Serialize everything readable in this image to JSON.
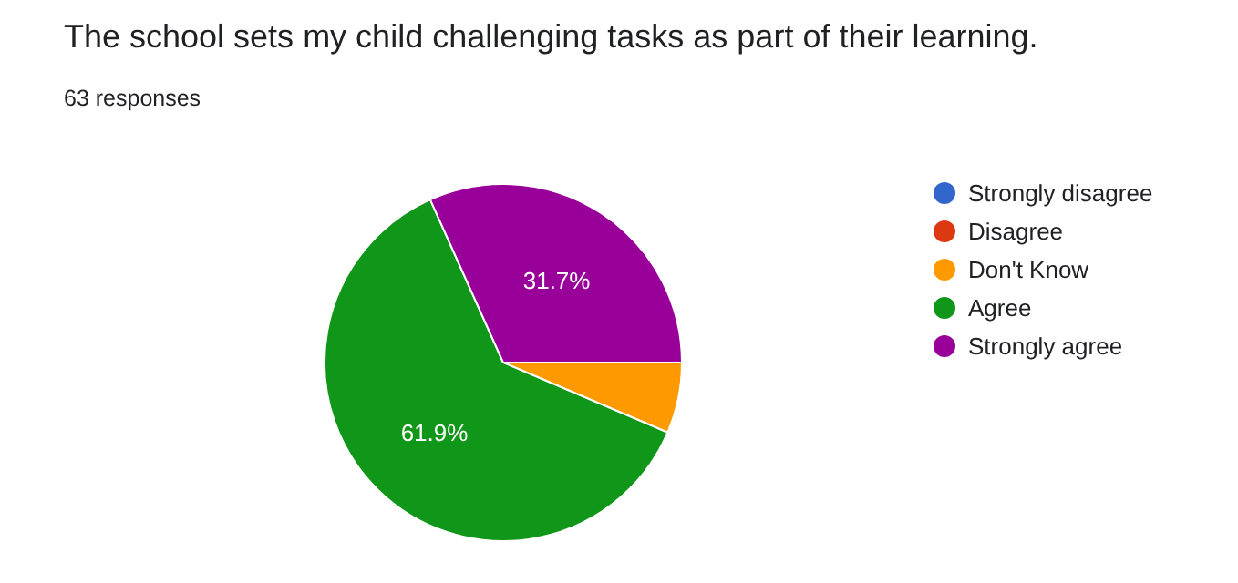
{
  "chart_data": {
    "type": "pie",
    "title": "The school sets my child challenging tasks as part of their learning.",
    "subtitle": "63 responses",
    "categories": [
      "Strongly disagree",
      "Disagree",
      "Don't Know",
      "Agree",
      "Strongly agree"
    ],
    "values": [
      0,
      0,
      6.4,
      61.9,
      31.7
    ],
    "colors": [
      "#3366cc",
      "#dc3912",
      "#ff9900",
      "#109618",
      "#990099"
    ],
    "value_labels": [
      null,
      null,
      null,
      "61.9%",
      "31.7%"
    ],
    "legend": "right"
  }
}
